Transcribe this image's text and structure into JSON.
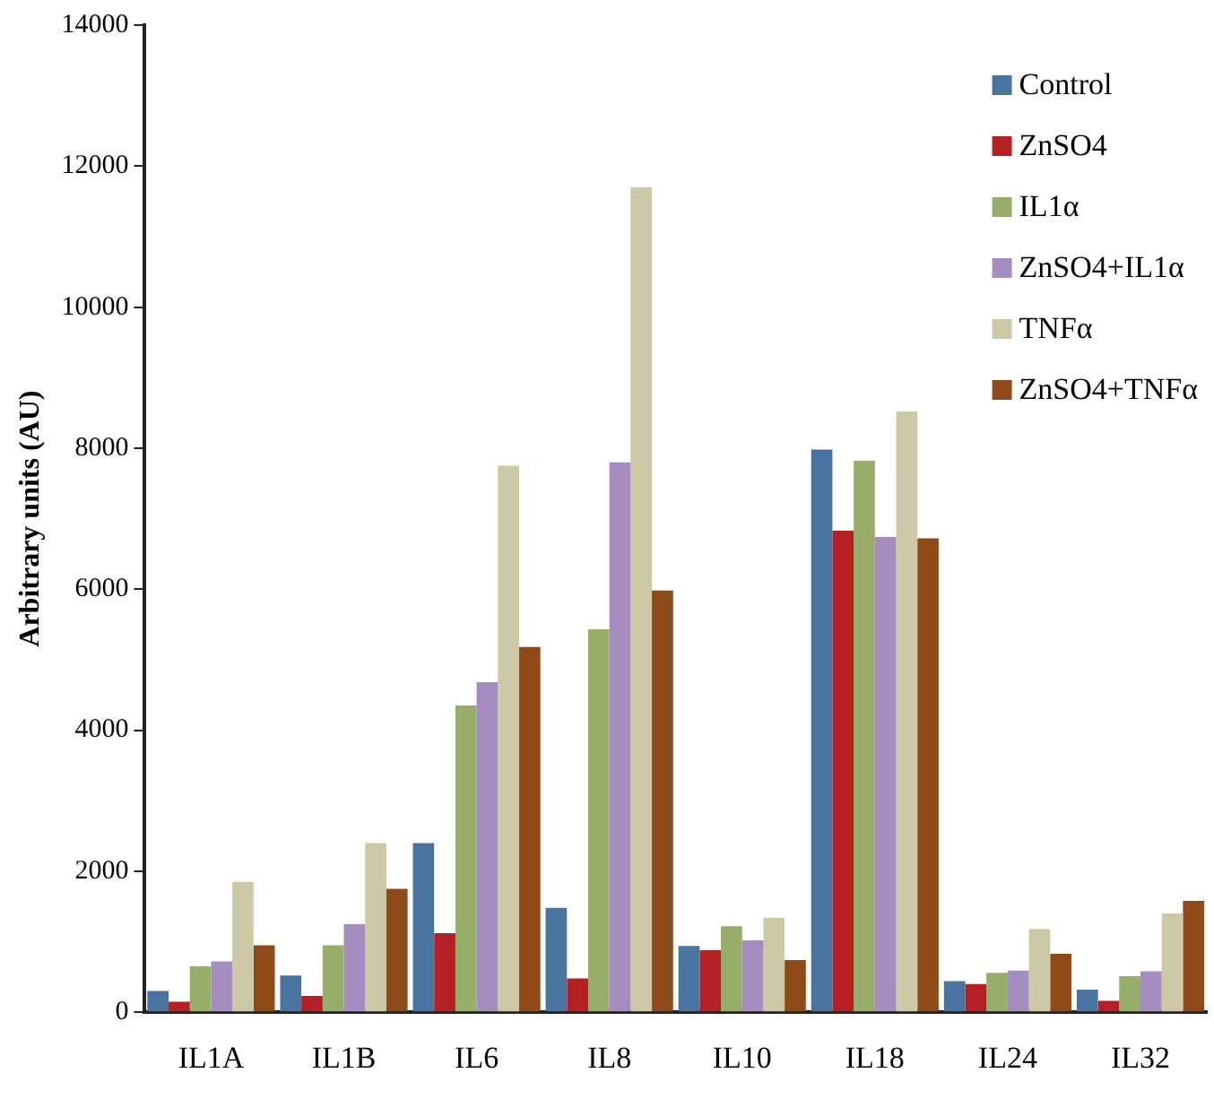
{
  "chart_data": {
    "type": "bar",
    "ylabel": "Arbitrary units (AU)",
    "categories": [
      "IL1A",
      "IL1B",
      "IL6",
      "IL8",
      "IL10",
      "IL18",
      "IL24",
      "IL32"
    ],
    "ylim": [
      0,
      14000
    ],
    "yticks": [
      0,
      2000,
      4000,
      6000,
      8000,
      10000,
      12000,
      14000
    ],
    "grid": false,
    "legend": "top right",
    "series": [
      {
        "name": "Control",
        "color": "#4a74a0",
        "values": [
          300,
          520,
          2400,
          1480,
          940,
          7980,
          440,
          320
        ]
      },
      {
        "name": "ZnSO4",
        "color": "#b42024",
        "values": [
          150,
          230,
          1120,
          480,
          880,
          6830,
          400,
          160
        ]
      },
      {
        "name": "IL1α",
        "color": "#97ad6a",
        "values": [
          650,
          950,
          4350,
          5430,
          1220,
          7820,
          560,
          510
        ]
      },
      {
        "name": "ZnSO4+IL1α",
        "color": "#a58dc0",
        "values": [
          720,
          1250,
          4680,
          7800,
          1020,
          6740,
          590,
          580
        ]
      },
      {
        "name": "TNFα",
        "color": "#cdc8a6",
        "values": [
          1850,
          2400,
          7750,
          11700,
          1340,
          8520,
          1180,
          1400
        ]
      },
      {
        "name": "ZnSO4+TNFα",
        "color": "#8e4a19",
        "values": [
          950,
          1750,
          5180,
          5980,
          740,
          6720,
          830,
          1580
        ]
      }
    ]
  }
}
